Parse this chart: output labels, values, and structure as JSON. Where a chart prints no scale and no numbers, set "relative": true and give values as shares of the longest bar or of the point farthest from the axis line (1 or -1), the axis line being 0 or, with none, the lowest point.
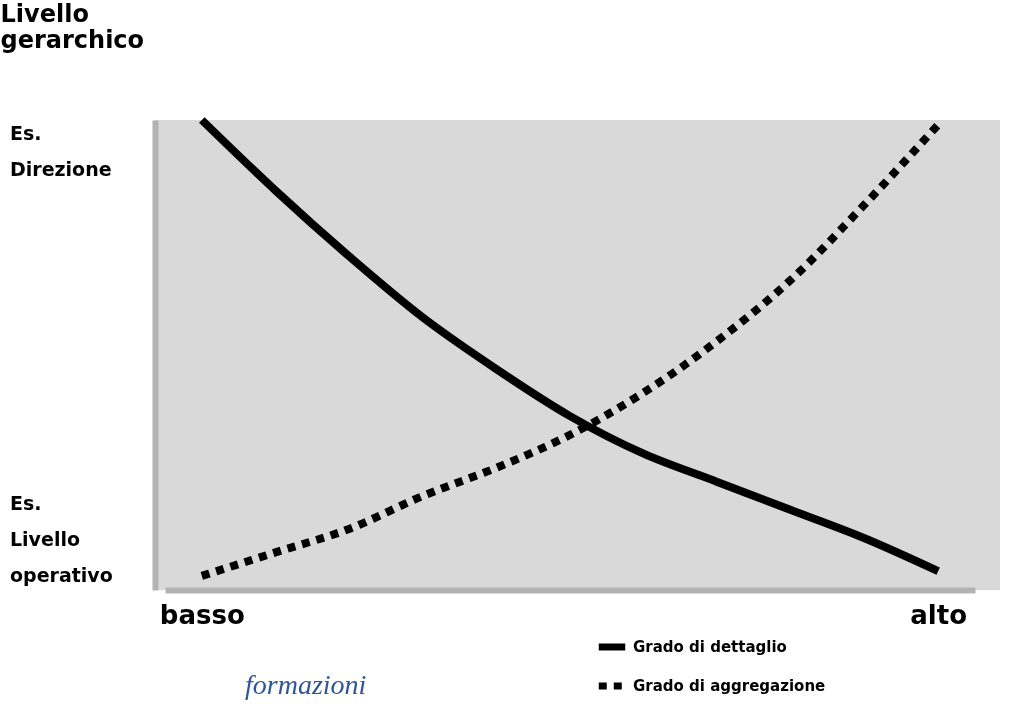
{
  "chart_data": {
    "type": "line",
    "ylabel": "Livello gerarchico",
    "relative": true,
    "categories": [
      "basso",
      null,
      null,
      null,
      null,
      null,
      null,
      null,
      null,
      null,
      "alto"
    ],
    "series": [
      {
        "name": "Grado di dettaglio",
        "color": "#000000",
        "line_style": "solid",
        "values": [
          1,
          0.85,
          0.71,
          0.58,
          0.47,
          0.37,
          0.29,
          0.23,
          0.17,
          0.11,
          0.04
        ]
      },
      {
        "name": "Grado di aggregazione",
        "color": "#000000",
        "line_style": "dotted",
        "values": [
          0.03,
          0.08,
          0.13,
          0.2,
          0.26,
          0.33,
          0.42,
          0.53,
          0.66,
          0.82,
          0.99
        ]
      }
    ],
    "annotations": [
      "Es. Direzione",
      "Es. Livello operativo",
      "formazioni"
    ],
    "legend": "bottom right",
    "grid": false,
    "marker": "none"
  }
}
